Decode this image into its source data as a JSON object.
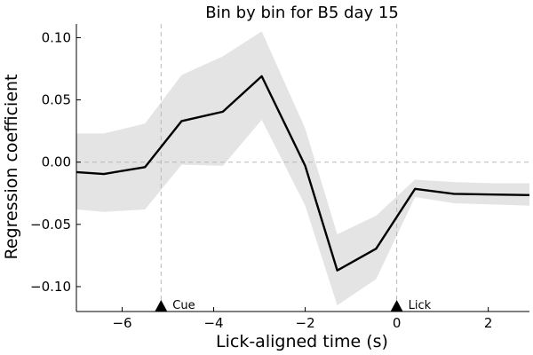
{
  "chart_data": {
    "type": "line",
    "title": "Bin by bin for B5 day 15",
    "xlabel": "Lick-aligned time (s)",
    "ylabel": "Regression coefficient",
    "xlim": [
      -7.0,
      2.9
    ],
    "ylim": [
      -0.12,
      0.111
    ],
    "xticks": [
      -6,
      -4,
      -2,
      0,
      2
    ],
    "xtick_labels": [
      "−6",
      "−4",
      "−2",
      "0",
      "2"
    ],
    "yticks": [
      0.1,
      0.05,
      0.0,
      -0.05,
      -0.1
    ],
    "ytick_labels": [
      "0.10",
      "0.05",
      "0.00",
      "−0.05",
      "−0.10"
    ],
    "grid": false,
    "reference_lines": {
      "horizontal_y": 0.0,
      "vertical_x": [
        -5.15,
        0.0
      ]
    },
    "series": [
      {
        "x": [
          -7.0,
          -6.4,
          -5.5,
          -4.7,
          -3.8,
          -2.95,
          -2.0,
          -1.3,
          -0.45,
          0.4,
          1.25,
          2.1,
          2.9
        ],
        "y": [
          -0.008,
          -0.0095,
          -0.004,
          0.033,
          0.0405,
          0.069,
          -0.003,
          -0.087,
          -0.0695,
          -0.0215,
          -0.0255,
          -0.026,
          -0.0265
        ],
        "lower": [
          -0.038,
          -0.04,
          -0.038,
          -0.002,
          -0.003,
          0.034,
          -0.035,
          -0.115,
          -0.094,
          -0.028,
          -0.033,
          -0.034,
          -0.035
        ],
        "upper": [
          0.023,
          0.023,
          0.031,
          0.07,
          0.085,
          0.105,
          0.027,
          -0.058,
          -0.043,
          -0.014,
          -0.016,
          -0.017,
          -0.017
        ],
        "color": "#000000",
        "band_color": "#e4e4e4"
      }
    ],
    "markers": [
      {
        "x": -5.15,
        "label": "Cue"
      },
      {
        "x": 0.0,
        "label": "Lick"
      }
    ]
  }
}
